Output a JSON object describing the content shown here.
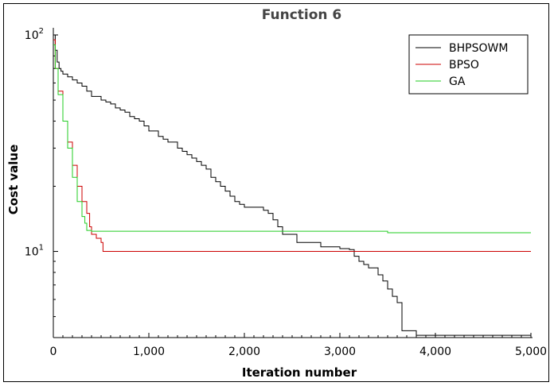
{
  "chart_data": {
    "type": "line",
    "title": "Function 6",
    "xlabel": "Iteration number",
    "ylabel": "Cost value",
    "xlim": [
      0,
      5000
    ],
    "ylim": [
      4,
      100
    ],
    "yscale": "log",
    "x_ticks": [
      0,
      1000,
      2000,
      3000,
      4000,
      5000
    ],
    "x_tick_labels": [
      "0",
      "1,000",
      "2,000",
      "3,000",
      "4,000",
      "5,000"
    ],
    "y_ticks": [
      10,
      100
    ],
    "y_tick_labels": [
      {
        "base": "10",
        "exp": "1"
      },
      {
        "base": "10",
        "exp": "2"
      }
    ],
    "grid": false,
    "legend_position": "top-right",
    "series": [
      {
        "name": "BHPSOWM",
        "color": "#000000",
        "x": [
          0,
          20,
          40,
          60,
          80,
          100,
          150,
          200,
          250,
          300,
          350,
          400,
          500,
          550,
          600,
          650,
          700,
          750,
          800,
          850,
          900,
          950,
          1000,
          1100,
          1150,
          1200,
          1300,
          1350,
          1400,
          1450,
          1500,
          1550,
          1600,
          1650,
          1700,
          1750,
          1800,
          1850,
          1900,
          1950,
          2000,
          2100,
          2200,
          2250,
          2300,
          2350,
          2400,
          2500,
          2550,
          2600,
          2800,
          2900,
          3000,
          3100,
          3150,
          3200,
          3250,
          3300,
          3400,
          3450,
          3500,
          3550,
          3600,
          3650,
          3800,
          4000,
          5000
        ],
        "y": [
          100,
          85,
          75,
          70,
          68,
          66,
          64,
          62,
          60,
          58,
          55,
          52,
          50,
          49,
          48,
          46,
          45,
          44,
          42,
          41,
          40,
          38,
          36,
          34,
          33,
          32,
          30,
          29,
          28,
          27,
          26,
          25,
          24,
          22,
          21,
          20,
          19,
          18,
          17,
          16.5,
          16,
          16,
          15.5,
          15,
          14,
          13,
          12,
          12,
          11,
          11,
          10.5,
          10.5,
          10.3,
          10.2,
          9.5,
          9.0,
          8.7,
          8.4,
          7.8,
          7.3,
          6.7,
          6.2,
          5.8,
          4.3,
          4.1,
          4.1,
          4.1
        ]
      },
      {
        "name": "BPSO",
        "color": "#cc0000",
        "x": [
          0,
          20,
          50,
          100,
          150,
          200,
          250,
          300,
          350,
          380,
          400,
          450,
          500,
          520,
          1000,
          5000
        ],
        "y": [
          95,
          70,
          55,
          40,
          32,
          25,
          20,
          17,
          15,
          13,
          12,
          11.5,
          11,
          10,
          10,
          10
        ]
      },
      {
        "name": "GA",
        "color": "#22cc22",
        "x": [
          0,
          20,
          50,
          100,
          150,
          200,
          250,
          300,
          330,
          350,
          400,
          450,
          1000,
          3300,
          3500,
          5000
        ],
        "y": [
          90,
          70,
          53,
          40,
          30,
          22,
          17,
          14.5,
          13.5,
          12.5,
          12.4,
          12.4,
          12.4,
          12.4,
          12.2,
          12.2
        ]
      }
    ]
  }
}
